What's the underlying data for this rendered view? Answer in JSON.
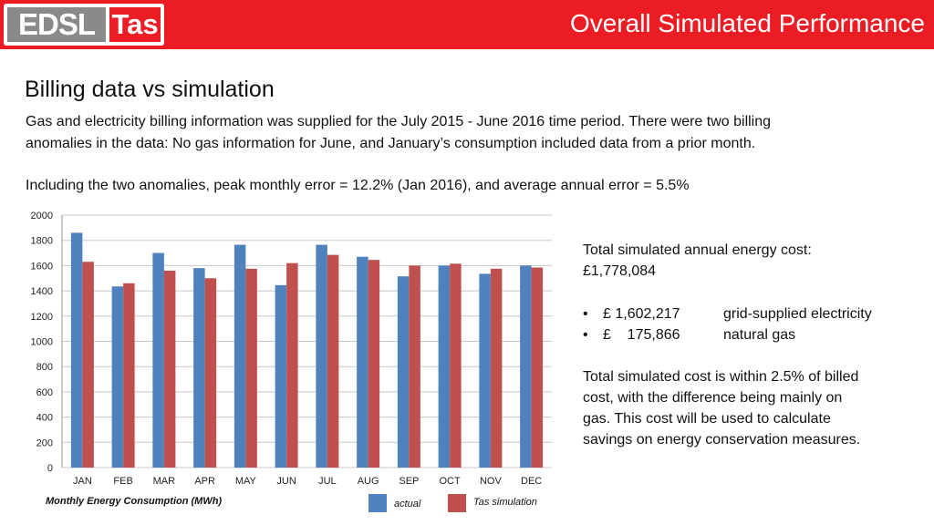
{
  "header": {
    "logo_left": "EDSL",
    "logo_right": "Tas",
    "title": "Overall Simulated Performance"
  },
  "content": {
    "subtitle": "Billing data vs simulation",
    "paragraph1_line1": "Gas and electricity billing information was supplied for the July 2015 - June 2016 time period. There were two billing",
    "paragraph1_line2": "anomalies in the data: No gas information for June, and January’s consumption included data from a prior month.",
    "paragraph2": "Including the two anomalies, peak monthly error = 12.2% (Jan 2016), and average annual error = 5.5%"
  },
  "side_panel": {
    "total_line1": "Total simulated annual energy cost:",
    "total_line2": "£1,778,084",
    "bullets": [
      {
        "amount": "£ 1,602,217",
        "label": "grid-supplied electricity"
      },
      {
        "amount": "£    175,866",
        "label": "natural gas"
      }
    ],
    "note_lines": [
      "Total simulated cost is within 2.5% of billed",
      "cost, with the difference being mainly on",
      "gas.  This cost will be used to calculate",
      "savings on energy conservation measures."
    ]
  },
  "chart_data": {
    "type": "bar",
    "title": "Monthly Energy Consumption (MWh)",
    "categories": [
      "JAN",
      "FEB",
      "MAR",
      "APR",
      "MAY",
      "JUN",
      "JUL",
      "AUG",
      "SEP",
      "OCT",
      "NOV",
      "DEC"
    ],
    "series": [
      {
        "name": "actual",
        "color": "#4f81bd",
        "values": [
          1860,
          1435,
          1700,
          1580,
          1765,
          1445,
          1765,
          1670,
          1515,
          1600,
          1535,
          1600
        ]
      },
      {
        "name": "Tas simulation",
        "color": "#c0504d",
        "values": [
          1630,
          1460,
          1560,
          1500,
          1575,
          1620,
          1685,
          1645,
          1600,
          1615,
          1575,
          1585
        ]
      }
    ],
    "ylim": [
      0,
      2000
    ],
    "yticks": [
      0,
      200,
      400,
      600,
      800,
      1000,
      1200,
      1400,
      1600,
      1800,
      2000
    ],
    "grid": true,
    "legend": "bottom"
  }
}
